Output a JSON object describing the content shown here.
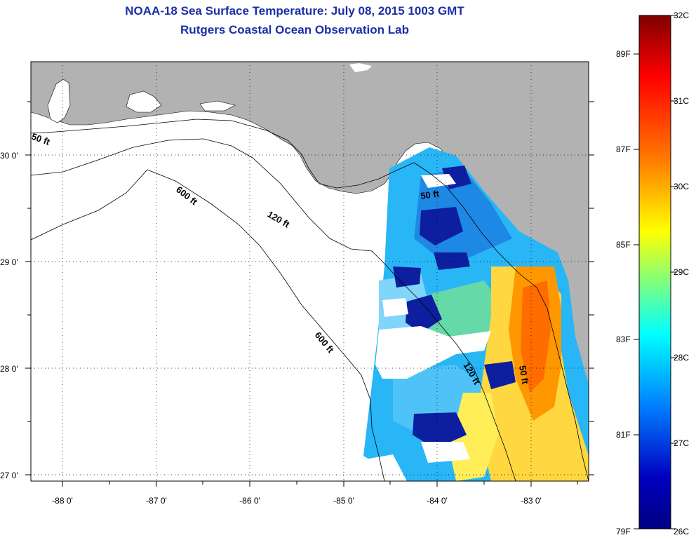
{
  "map": {
    "title": "NOAA-18 Sea Surface Temperature:  July 08, 2015 1003 GMT",
    "subtitle": "Rutgers Coastal Ocean Observation Lab",
    "lat_labels": [
      "30 0'",
      "29 0'",
      "28 0'",
      "27 0'"
    ],
    "lon_labels": [
      "-88 0'",
      "-87 0'",
      "-86 0'",
      "-85 0'",
      "-84 0'",
      "-83 0'"
    ],
    "depth_labels": [
      "50 ft",
      "600 ft",
      "120 ft",
      "50 ft",
      "600 ft",
      "120 ft",
      "50 ft"
    ],
    "colors": {
      "land": "#b2b2b2",
      "title": "#1c2fa8",
      "contour": "#000000"
    }
  },
  "colorbar": {
    "celsius_labels": [
      "32C",
      "31C",
      "30C",
      "29C",
      "28C",
      "27C",
      "26C"
    ],
    "fahrenheit_labels": [
      "89F",
      "87F",
      "85F",
      "83F",
      "81F",
      "79F"
    ],
    "gradient_colors": [
      "#7f0000",
      "#ff0000",
      "#ff7a00",
      "#ffff00",
      "#7fff7f",
      "#00ffff",
      "#0080ff",
      "#0000c0",
      "#00007f"
    ]
  }
}
